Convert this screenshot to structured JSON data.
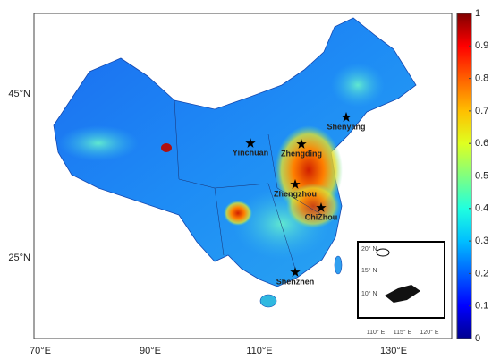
{
  "map": {
    "lat_labels": [
      "45°N",
      "25°N"
    ],
    "lon_labels": [
      "70°E",
      "90°E",
      "110°E",
      "130°E"
    ],
    "cities": [
      "Shenyang",
      "Yinchuan",
      "Zhengding",
      "Zhengzhou",
      "ChiZhou",
      "Shenzhen"
    ],
    "colorbar": {
      "ticks": [
        0,
        0.1,
        0.2,
        0.3,
        0.4,
        0.5,
        0.6,
        0.7,
        0.8,
        0.9,
        1
      ],
      "colors": [
        "#00008f",
        "#0000ff",
        "#0060ff",
        "#00bfff",
        "#20ffdf",
        "#80ff80",
        "#dfff20",
        "#ffbf00",
        "#ff6000",
        "#ff0000",
        "#800000"
      ]
    },
    "inset": {
      "lat_labels": [
        "20° N",
        "15° N",
        "10° N"
      ],
      "lon_labels": [
        "110° E",
        "115° E",
        "120° E"
      ]
    }
  }
}
